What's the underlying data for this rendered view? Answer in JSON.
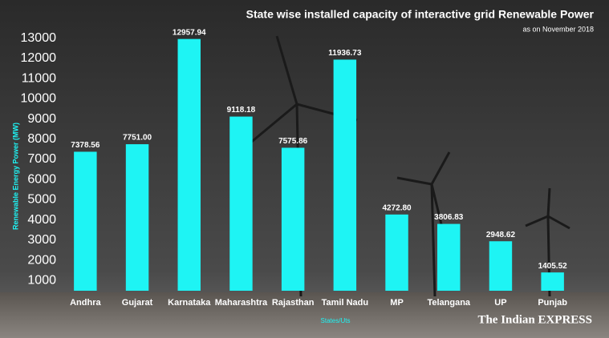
{
  "chart_data": {
    "type": "bar",
    "title": "State wise installed capacity of interactive grid Renewable Power",
    "subtitle": "as on November 2018",
    "y_label": "Renewable Energy Power (MW)",
    "x_label": "States/Uts",
    "source": "The Indian EXPRESS",
    "categories": [
      "Andhra",
      "Gujarat",
      "Karnataka",
      "Maharashtra",
      "Rajasthan",
      "Tamil Nadu",
      "MP",
      "Telangana",
      "UP",
      "Punjab"
    ],
    "values": [
      7378.56,
      7751,
      12957.94,
      9118.18,
      7575.86,
      11936.73,
      4272.8,
      3806.83,
      2948.62,
      1405.52
    ],
    "value_labels": [
      "7378.56",
      "7751.00",
      "12957.94",
      "9118.18",
      "7575.86",
      "11936.73",
      "4272.80",
      "3806.83",
      "2948.62",
      "1405.52"
    ],
    "color": "#1ef4f4",
    "ylim": [
      500,
      13500
    ],
    "yticks": [
      1000,
      2000,
      3000,
      4000,
      5000,
      6000,
      7000,
      8000,
      9000,
      10000,
      11000,
      12000,
      13000
    ],
    "grid": false
  }
}
